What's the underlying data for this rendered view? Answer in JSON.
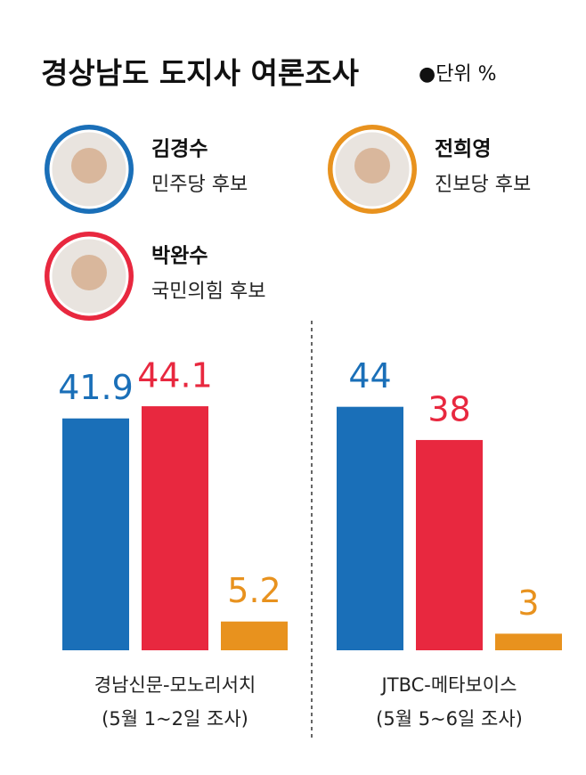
{
  "title": "경상남도 도지사 여론조사",
  "unit": "●단위 %",
  "candidates": [
    {
      "name": "김경수",
      "party": "민주당 후보",
      "color": "#1a6fb8"
    },
    {
      "name": "박완수",
      "party": "국민의힘 후보",
      "color": "#e8283f"
    },
    {
      "name": "전희영",
      "party": "진보당 후보",
      "color": "#e8921e"
    }
  ],
  "chart_data": [
    {
      "type": "bar",
      "title": "경남신문-모노리서치",
      "subtitle": "(5월 1~2일 조사)",
      "values": [
        41.9,
        44.1,
        5.2
      ],
      "colors": [
        "#1a6fb8",
        "#e8283f",
        "#e8921e"
      ],
      "ylim": [
        0,
        50
      ]
    },
    {
      "type": "bar",
      "title": "JTBC-메타보이스",
      "subtitle": "(5월 5~6일 조사)",
      "values": [
        44,
        38,
        3
      ],
      "colors": [
        "#1a6fb8",
        "#e8283f",
        "#e8921e"
      ],
      "ylim": [
        0,
        50
      ]
    }
  ]
}
